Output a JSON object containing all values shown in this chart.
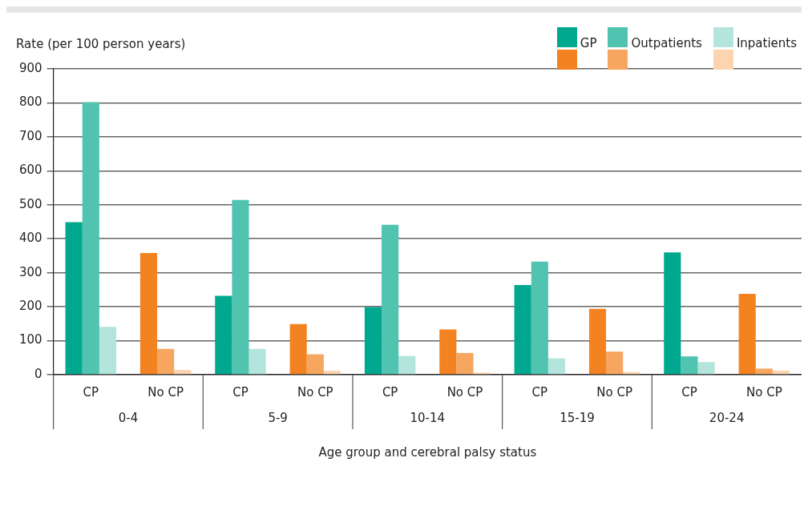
{
  "chart_data": {
    "type": "bar",
    "categories": [
      "CP",
      "No CP",
      "CP",
      "No CP",
      "CP",
      "No CP",
      "CP",
      "No CP",
      "CP",
      "No CP"
    ],
    "series": [
      {
        "name": "GP",
        "color": "#00a88f",
        "colors": [
          "#00a88f",
          "#f38321",
          "#00a88f",
          "#f38321",
          "#00a88f",
          "#f38321",
          "#00a88f",
          "#f38321",
          "#00a88f",
          "#f38321"
        ],
        "values": [
          449,
          358,
          232,
          149,
          199,
          133,
          264,
          194,
          360,
          238
        ]
      },
      {
        "name": "Outpatients",
        "color": "#50c4b1",
        "colors": [
          "#50c4b1",
          "#f7a660",
          "#50c4b1",
          "#f7a660",
          "#50c4b1",
          "#f7a660",
          "#50c4b1",
          "#f7a660",
          "#50c4b1",
          "#f7a660"
        ],
        "values": [
          802,
          76,
          514,
          60,
          441,
          64,
          333,
          68,
          54,
          18
        ]
      },
      {
        "name": "Inpatients",
        "color": "#b3e5dc",
        "colors": [
          "#b3e5dc",
          "#fdd4b0",
          "#b3e5dc",
          "#fdd4b0",
          "#b3e5dc",
          "#fdd4b0",
          "#b3e5dc",
          "#fdd4b0",
          "#b3e5dc",
          "#fdd4b0"
        ],
        "values": [
          141,
          14,
          76,
          12,
          55,
          6,
          48,
          8,
          37,
          12
        ]
      }
    ],
    "ylabel": "Rate (per 100 person years)",
    "xlabel": "Age group and cerebral palsy status",
    "annotations": [
      "0-4",
      "5-9",
      "10-14",
      "15-19",
      "20-24"
    ],
    "ylim": [
      0,
      900
    ],
    "yticks": [
      0,
      100,
      200,
      300,
      400,
      500,
      600,
      700,
      800,
      900
    ],
    "grid": "y",
    "legend": "top right"
  }
}
